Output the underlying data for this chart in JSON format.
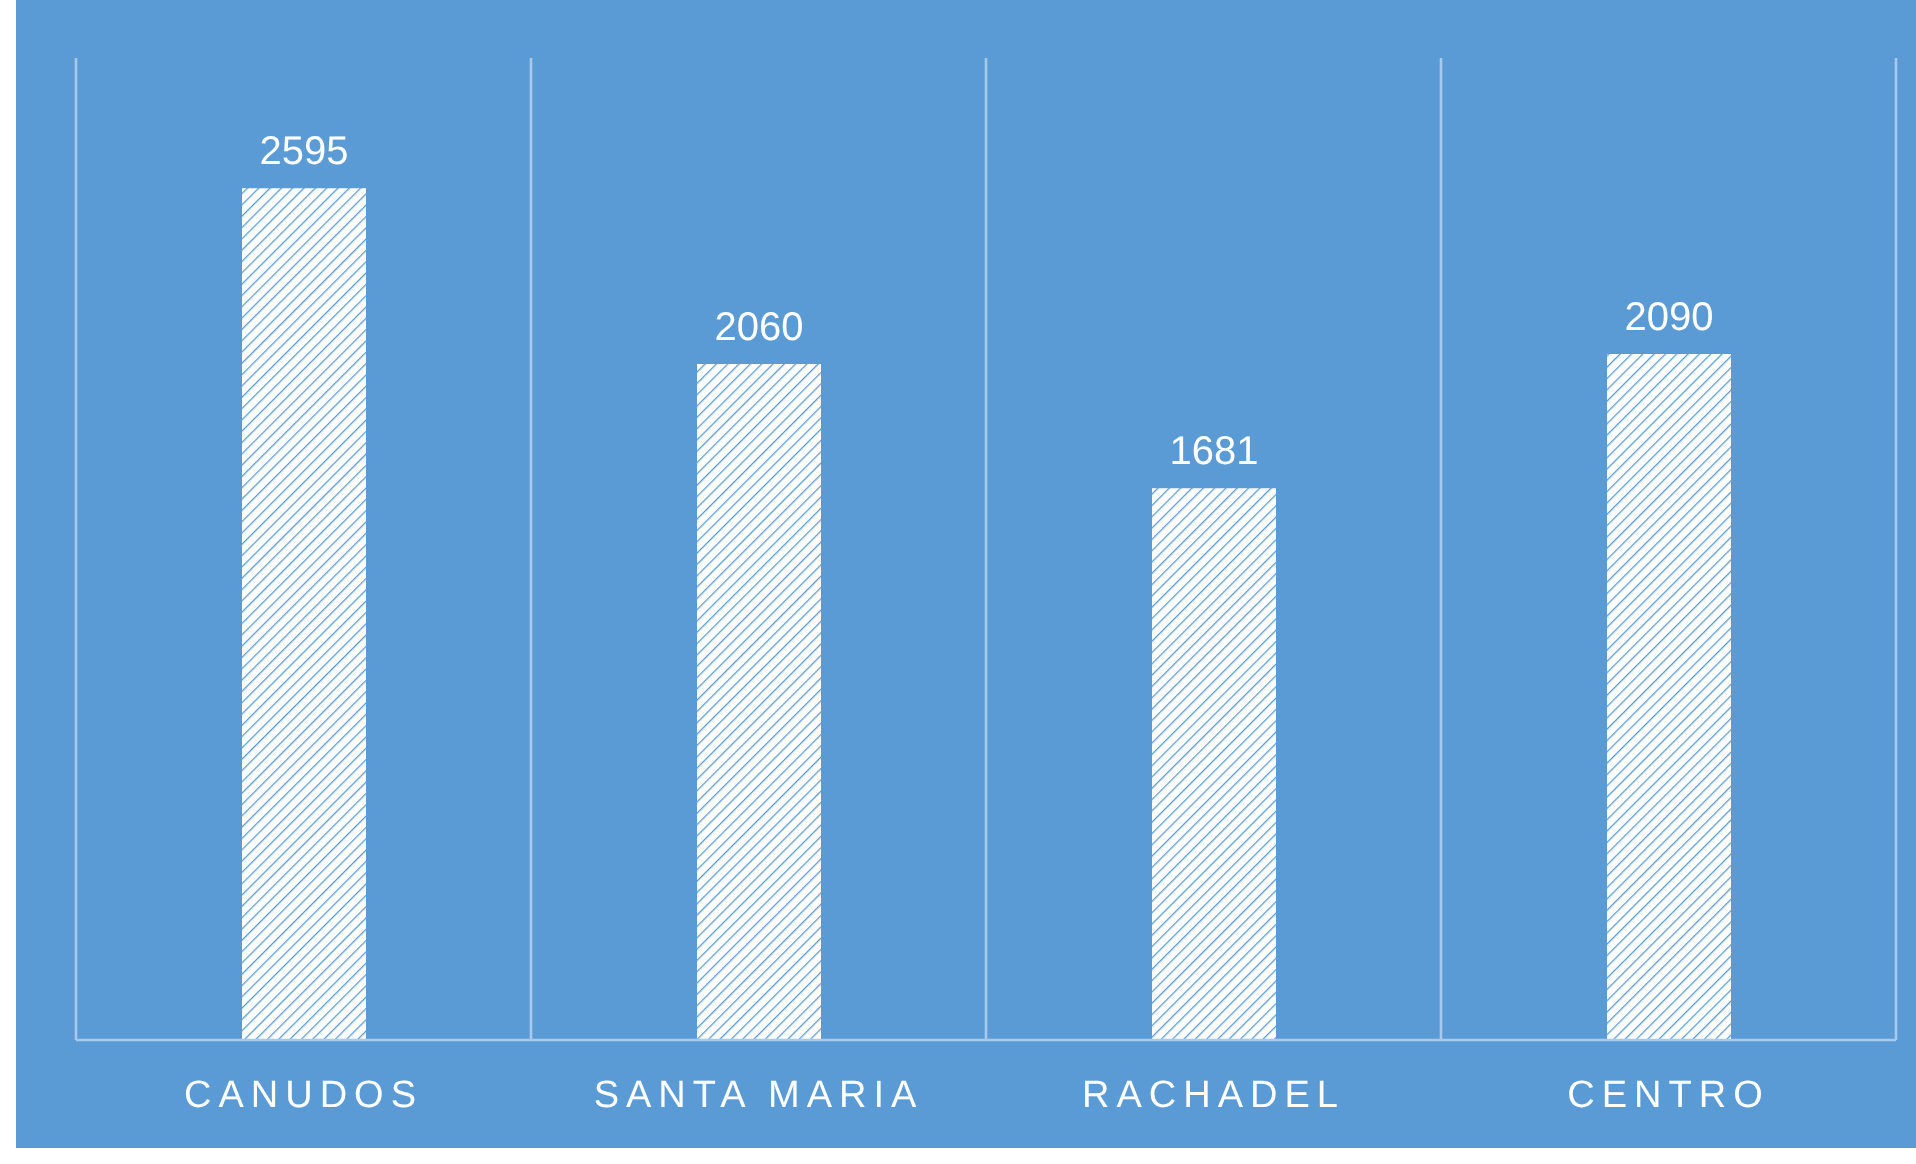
{
  "chart_data": {
    "type": "bar",
    "categories": [
      "CANUDOS",
      "SANTA MARIA",
      "RACHADEL",
      "CENTRO"
    ],
    "values": [
      2595,
      2060,
      1681,
      2090
    ],
    "color": "#ffffff",
    "data_labels": true,
    "grid": "x"
  }
}
